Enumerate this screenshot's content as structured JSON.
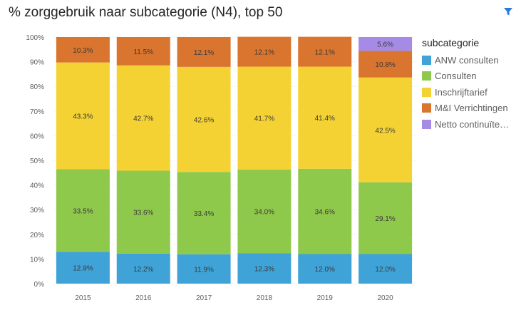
{
  "header": {
    "title": "% zorggebruik naar subcategorie (N4), top 50",
    "filter_icon": "filter-icon"
  },
  "legend": {
    "title": "subcategorie",
    "items": [
      {
        "label": "ANW consulten",
        "color": "#3fa3d8"
      },
      {
        "label": "Consulten",
        "color": "#8fc94c"
      },
      {
        "label": "Inschrijftarief",
        "color": "#f5d234"
      },
      {
        "label": "M&I Verrichtingen",
        "color": "#d9752e"
      },
      {
        "label": "Netto continuïte…",
        "color": "#a58be6"
      }
    ]
  },
  "chart_data": {
    "type": "bar",
    "stacked": true,
    "percent": true,
    "title": "% zorggebruik naar subcategorie (N4), top 50",
    "categories": [
      "2015",
      "2016",
      "2017",
      "2018",
      "2019",
      "2020"
    ],
    "y_ticks": [
      "0%",
      "10%",
      "20%",
      "30%",
      "40%",
      "50%",
      "60%",
      "70%",
      "80%",
      "90%",
      "100%"
    ],
    "ylim": [
      0,
      100
    ],
    "grid": true,
    "legend_position": "right",
    "series": [
      {
        "name": "ANW consulten",
        "color": "#3fa3d8",
        "values": [
          12.9,
          12.2,
          11.9,
          12.3,
          12.0,
          12.0
        ],
        "labels": [
          "12.9%",
          "12.2%",
          "11.9%",
          "12.3%",
          "12.0%",
          "12.0%"
        ]
      },
      {
        "name": "Consulten",
        "color": "#8fc94c",
        "values": [
          33.5,
          33.6,
          33.4,
          34.0,
          34.6,
          29.1
        ],
        "labels": [
          "33.5%",
          "33.6%",
          "33.4%",
          "34.0%",
          "34.6%",
          "29.1%"
        ]
      },
      {
        "name": "Inschrijftarief",
        "color": "#f5d234",
        "values": [
          43.3,
          42.7,
          42.6,
          41.7,
          41.4,
          42.5
        ],
        "labels": [
          "43.3%",
          "42.7%",
          "42.6%",
          "41.7%",
          "41.4%",
          "42.5%"
        ]
      },
      {
        "name": "M&I Verrichtingen",
        "color": "#d9752e",
        "values": [
          10.3,
          11.5,
          12.1,
          12.1,
          12.1,
          10.8
        ],
        "labels": [
          "10.3%",
          "11.5%",
          "12.1%",
          "12.1%",
          "12.1%",
          "10.8%"
        ]
      },
      {
        "name": "Netto continuïteitsbijdrage",
        "color": "#a58be6",
        "values": [
          0,
          0,
          0,
          0,
          0,
          5.6
        ],
        "labels": [
          "",
          "",
          "",
          "",
          "",
          "5.6%"
        ]
      }
    ]
  }
}
